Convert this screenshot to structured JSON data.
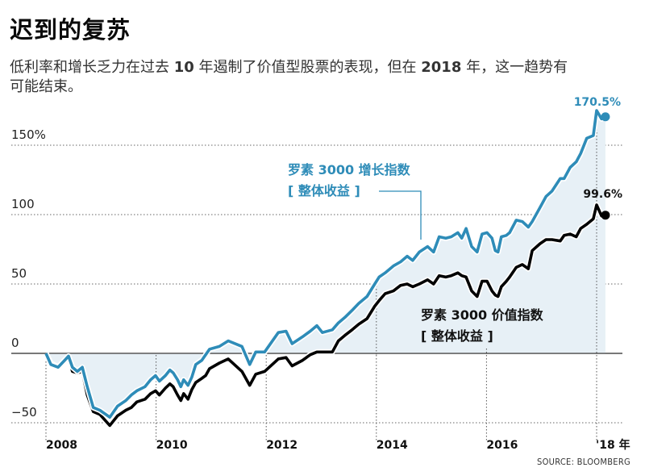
{
  "header": {
    "title": "迟到的复苏",
    "subtitle_part1": "低利率和增长乏力在过去 ",
    "subtitle_bold1": "10",
    "subtitle_part2": " 年遏制了价值型股票的表现，但在 ",
    "subtitle_bold2": "2018",
    "subtitle_part3": " 年，这一趋势有可能结束。"
  },
  "source": "SOURCE: BLOOMBERG",
  "colors": {
    "growth": "#2e8cb8",
    "value": "#000000",
    "fill": "#e7f0f6",
    "grid": "#555555"
  },
  "chart_data": {
    "type": "line",
    "title": "迟到的复苏",
    "xlabel": "年",
    "ylabel": "",
    "xlim": [
      2008,
      2018.45
    ],
    "ylim": [
      -55,
      175
    ],
    "grid": true,
    "y_ticks": [
      {
        "value": 150,
        "label": "150%"
      },
      {
        "value": 100,
        "label": "100"
      },
      {
        "value": 50,
        "label": "50"
      },
      {
        "value": 0,
        "label": "0"
      },
      {
        "value": -50,
        "label": "−50"
      }
    ],
    "x_ticks": [
      {
        "value": 2008,
        "label": "2008"
      },
      {
        "value": 2010,
        "label": "2010"
      },
      {
        "value": 2012,
        "label": "2012"
      },
      {
        "value": 2014,
        "label": "2014"
      },
      {
        "value": 2016,
        "label": "2016"
      },
      {
        "value": 2018,
        "label": "'18 年"
      }
    ],
    "series": [
      {
        "name": "罗素 3000 增长指数 [ 整体收益 ]",
        "label_line1": "罗素 3000 增长指数",
        "label_line2": "[ 整体收益 ]",
        "end_label": "170.5%",
        "end_value": 170.5,
        "color": "#2e8cb8",
        "x": [
          2008.0,
          2008.09,
          2008.22,
          2008.34,
          2008.41,
          2008.48,
          2008.57,
          2008.66,
          2008.75,
          2008.86,
          2008.98,
          2009.16,
          2009.3,
          2009.45,
          2009.55,
          2009.65,
          2009.8,
          2009.9,
          2009.99,
          2010.06,
          2010.17,
          2010.25,
          2010.31,
          2010.39,
          2010.45,
          2010.5,
          2010.58,
          2010.65,
          2010.72,
          2010.83,
          2010.9,
          2010.97,
          2011.15,
          2011.31,
          2011.56,
          2011.7,
          2011.81,
          2011.97,
          2012.22,
          2012.36,
          2012.47,
          2012.66,
          2012.8,
          2012.92,
          2013.02,
          2013.2,
          2013.31,
          2013.43,
          2013.56,
          2013.68,
          2013.83,
          2013.97,
          2014.05,
          2014.16,
          2014.31,
          2014.44,
          2014.56,
          2014.66,
          2014.78,
          2014.93,
          2015.04,
          2015.14,
          2015.26,
          2015.36,
          2015.48,
          2015.55,
          2015.63,
          2015.73,
          2015.83,
          2015.92,
          2016.01,
          2016.1,
          2016.16,
          2016.21,
          2016.27,
          2016.36,
          2016.42,
          2016.54,
          2016.65,
          2016.76,
          2016.83,
          2016.97,
          2017.08,
          2017.19,
          2017.34,
          2017.41,
          2017.52,
          2017.63,
          2017.71,
          2017.82,
          2017.94,
          2018.0,
          2018.09,
          2018.16
        ],
        "values": [
          0,
          -8,
          -10,
          -5,
          -2,
          -10,
          -13,
          -10,
          -24,
          -39,
          -41,
          -46,
          -38,
          -34,
          -30,
          -27,
          -24,
          -19,
          -16,
          -20,
          -16,
          -12,
          -14,
          -19,
          -24,
          -19,
          -23,
          -17,
          -8,
          -5,
          -1,
          3,
          5,
          9,
          5,
          -8,
          1,
          1,
          15,
          16,
          7,
          12,
          16,
          20,
          15,
          17,
          22,
          26,
          31,
          36,
          41,
          50,
          55,
          58,
          63,
          66,
          70,
          67,
          73,
          77,
          73,
          84,
          83,
          84,
          87,
          83,
          90,
          77,
          73,
          86,
          87,
          83,
          74,
          73,
          84,
          85,
          87,
          96,
          95,
          91,
          95,
          105,
          113,
          117,
          126,
          126,
          134,
          138,
          144,
          155,
          157,
          175,
          169,
          170.5
        ]
      },
      {
        "name": "罗素 3000 价值指数 [ 整体收益 ]",
        "label_line1": "罗素 3000 价值指数",
        "label_line2": "[ 整体收益 ]",
        "end_label": "99.6%",
        "end_value": 99.6,
        "color": "#000000",
        "x": [
          2008.0,
          2008.09,
          2008.22,
          2008.34,
          2008.41,
          2008.48,
          2008.57,
          2008.66,
          2008.75,
          2008.86,
          2008.98,
          2009.16,
          2009.3,
          2009.45,
          2009.55,
          2009.65,
          2009.8,
          2009.9,
          2009.99,
          2010.06,
          2010.17,
          2010.25,
          2010.31,
          2010.39,
          2010.45,
          2010.5,
          2010.58,
          2010.65,
          2010.72,
          2010.83,
          2010.9,
          2010.97,
          2011.15,
          2011.31,
          2011.56,
          2011.7,
          2011.81,
          2011.97,
          2012.22,
          2012.36,
          2012.47,
          2012.66,
          2012.8,
          2012.92,
          2013.02,
          2013.2,
          2013.31,
          2013.43,
          2013.56,
          2013.68,
          2013.83,
          2013.97,
          2014.05,
          2014.16,
          2014.31,
          2014.44,
          2014.56,
          2014.66,
          2014.78,
          2014.93,
          2015.04,
          2015.14,
          2015.26,
          2015.36,
          2015.48,
          2015.55,
          2015.63,
          2015.73,
          2015.83,
          2015.92,
          2016.01,
          2016.1,
          2016.16,
          2016.21,
          2016.27,
          2016.36,
          2016.42,
          2016.54,
          2016.65,
          2016.76,
          2016.83,
          2016.97,
          2017.08,
          2017.19,
          2017.34,
          2017.41,
          2017.52,
          2017.63,
          2017.71,
          2017.82,
          2017.94,
          2018.0,
          2018.09,
          2018.16
        ],
        "values": [
          0,
          -7,
          -10,
          -5,
          -3,
          -13,
          -14,
          -13,
          -30,
          -42,
          -44,
          -52,
          -45,
          -41,
          -39,
          -35,
          -33,
          -29,
          -27,
          -30,
          -25,
          -22,
          -24,
          -30,
          -34,
          -29,
          -33,
          -26,
          -21,
          -18,
          -16,
          -11,
          -7,
          -4,
          -13,
          -23,
          -15,
          -13,
          -4,
          -3,
          -9,
          -5,
          -1,
          1,
          1,
          1,
          9,
          13,
          17,
          21,
          25,
          34,
          38,
          43,
          45,
          49,
          50,
          48,
          50,
          53,
          50,
          56,
          55,
          56,
          58,
          56,
          55,
          45,
          41,
          52,
          52,
          45,
          42,
          41,
          48,
          52,
          55,
          62,
          64,
          61,
          74,
          79,
          82,
          82,
          81,
          85,
          86,
          84,
          90,
          93,
          97,
          107,
          99,
          99.6
        ]
      }
    ]
  }
}
